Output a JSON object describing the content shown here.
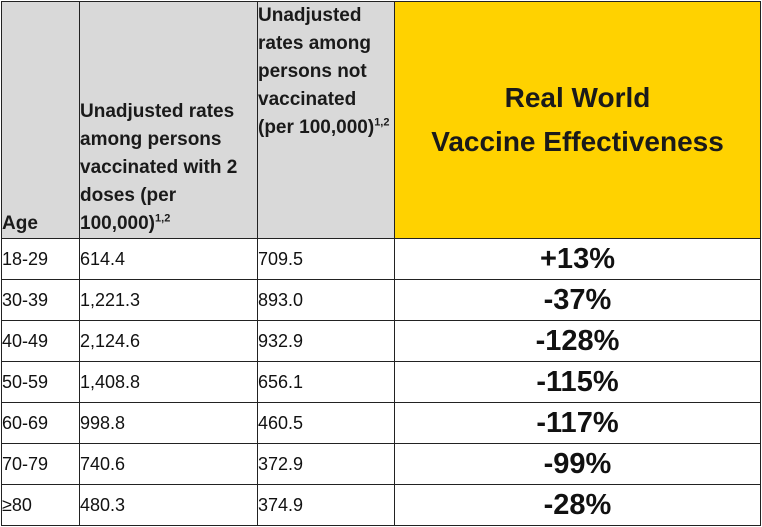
{
  "table": {
    "headers": {
      "age": "Age",
      "vaccinated": "Unadjusted rates among persons vaccinated with 2 doses (per 100,000)",
      "vaccinated_sup": "1,2",
      "unvaccinated": "Unadjusted rates among persons not vaccinated (per 100,000)",
      "unvaccinated_sup": "1,2",
      "effectiveness_line1": "Real World",
      "effectiveness_line2": "Vaccine Effectiveness"
    },
    "rows": [
      {
        "age": "18-29",
        "vaccinated": "614.4",
        "unvaccinated": "709.5",
        "effectiveness": "+13%"
      },
      {
        "age": "30-39",
        "vaccinated": "1,221.3",
        "unvaccinated": "893.0",
        "effectiveness": "-37%"
      },
      {
        "age": "40-49",
        "vaccinated": "2,124.6",
        "unvaccinated": "932.9",
        "effectiveness": "-128%"
      },
      {
        "age": "50-59",
        "vaccinated": "1,408.8",
        "unvaccinated": "656.1",
        "effectiveness": "-115%"
      },
      {
        "age": "60-69",
        "vaccinated": "998.8",
        "unvaccinated": "460.5",
        "effectiveness": "-117%"
      },
      {
        "age": "70-79",
        "vaccinated": "740.6",
        "unvaccinated": "372.9",
        "effectiveness": "-99%"
      },
      {
        "age": "≥80",
        "vaccinated": "480.3",
        "unvaccinated": "374.9",
        "effectiveness": "-28%"
      }
    ]
  },
  "colors": {
    "header_grey": "#d9d9d9",
    "header_yellow": "#ffd200",
    "border": "#222222"
  }
}
